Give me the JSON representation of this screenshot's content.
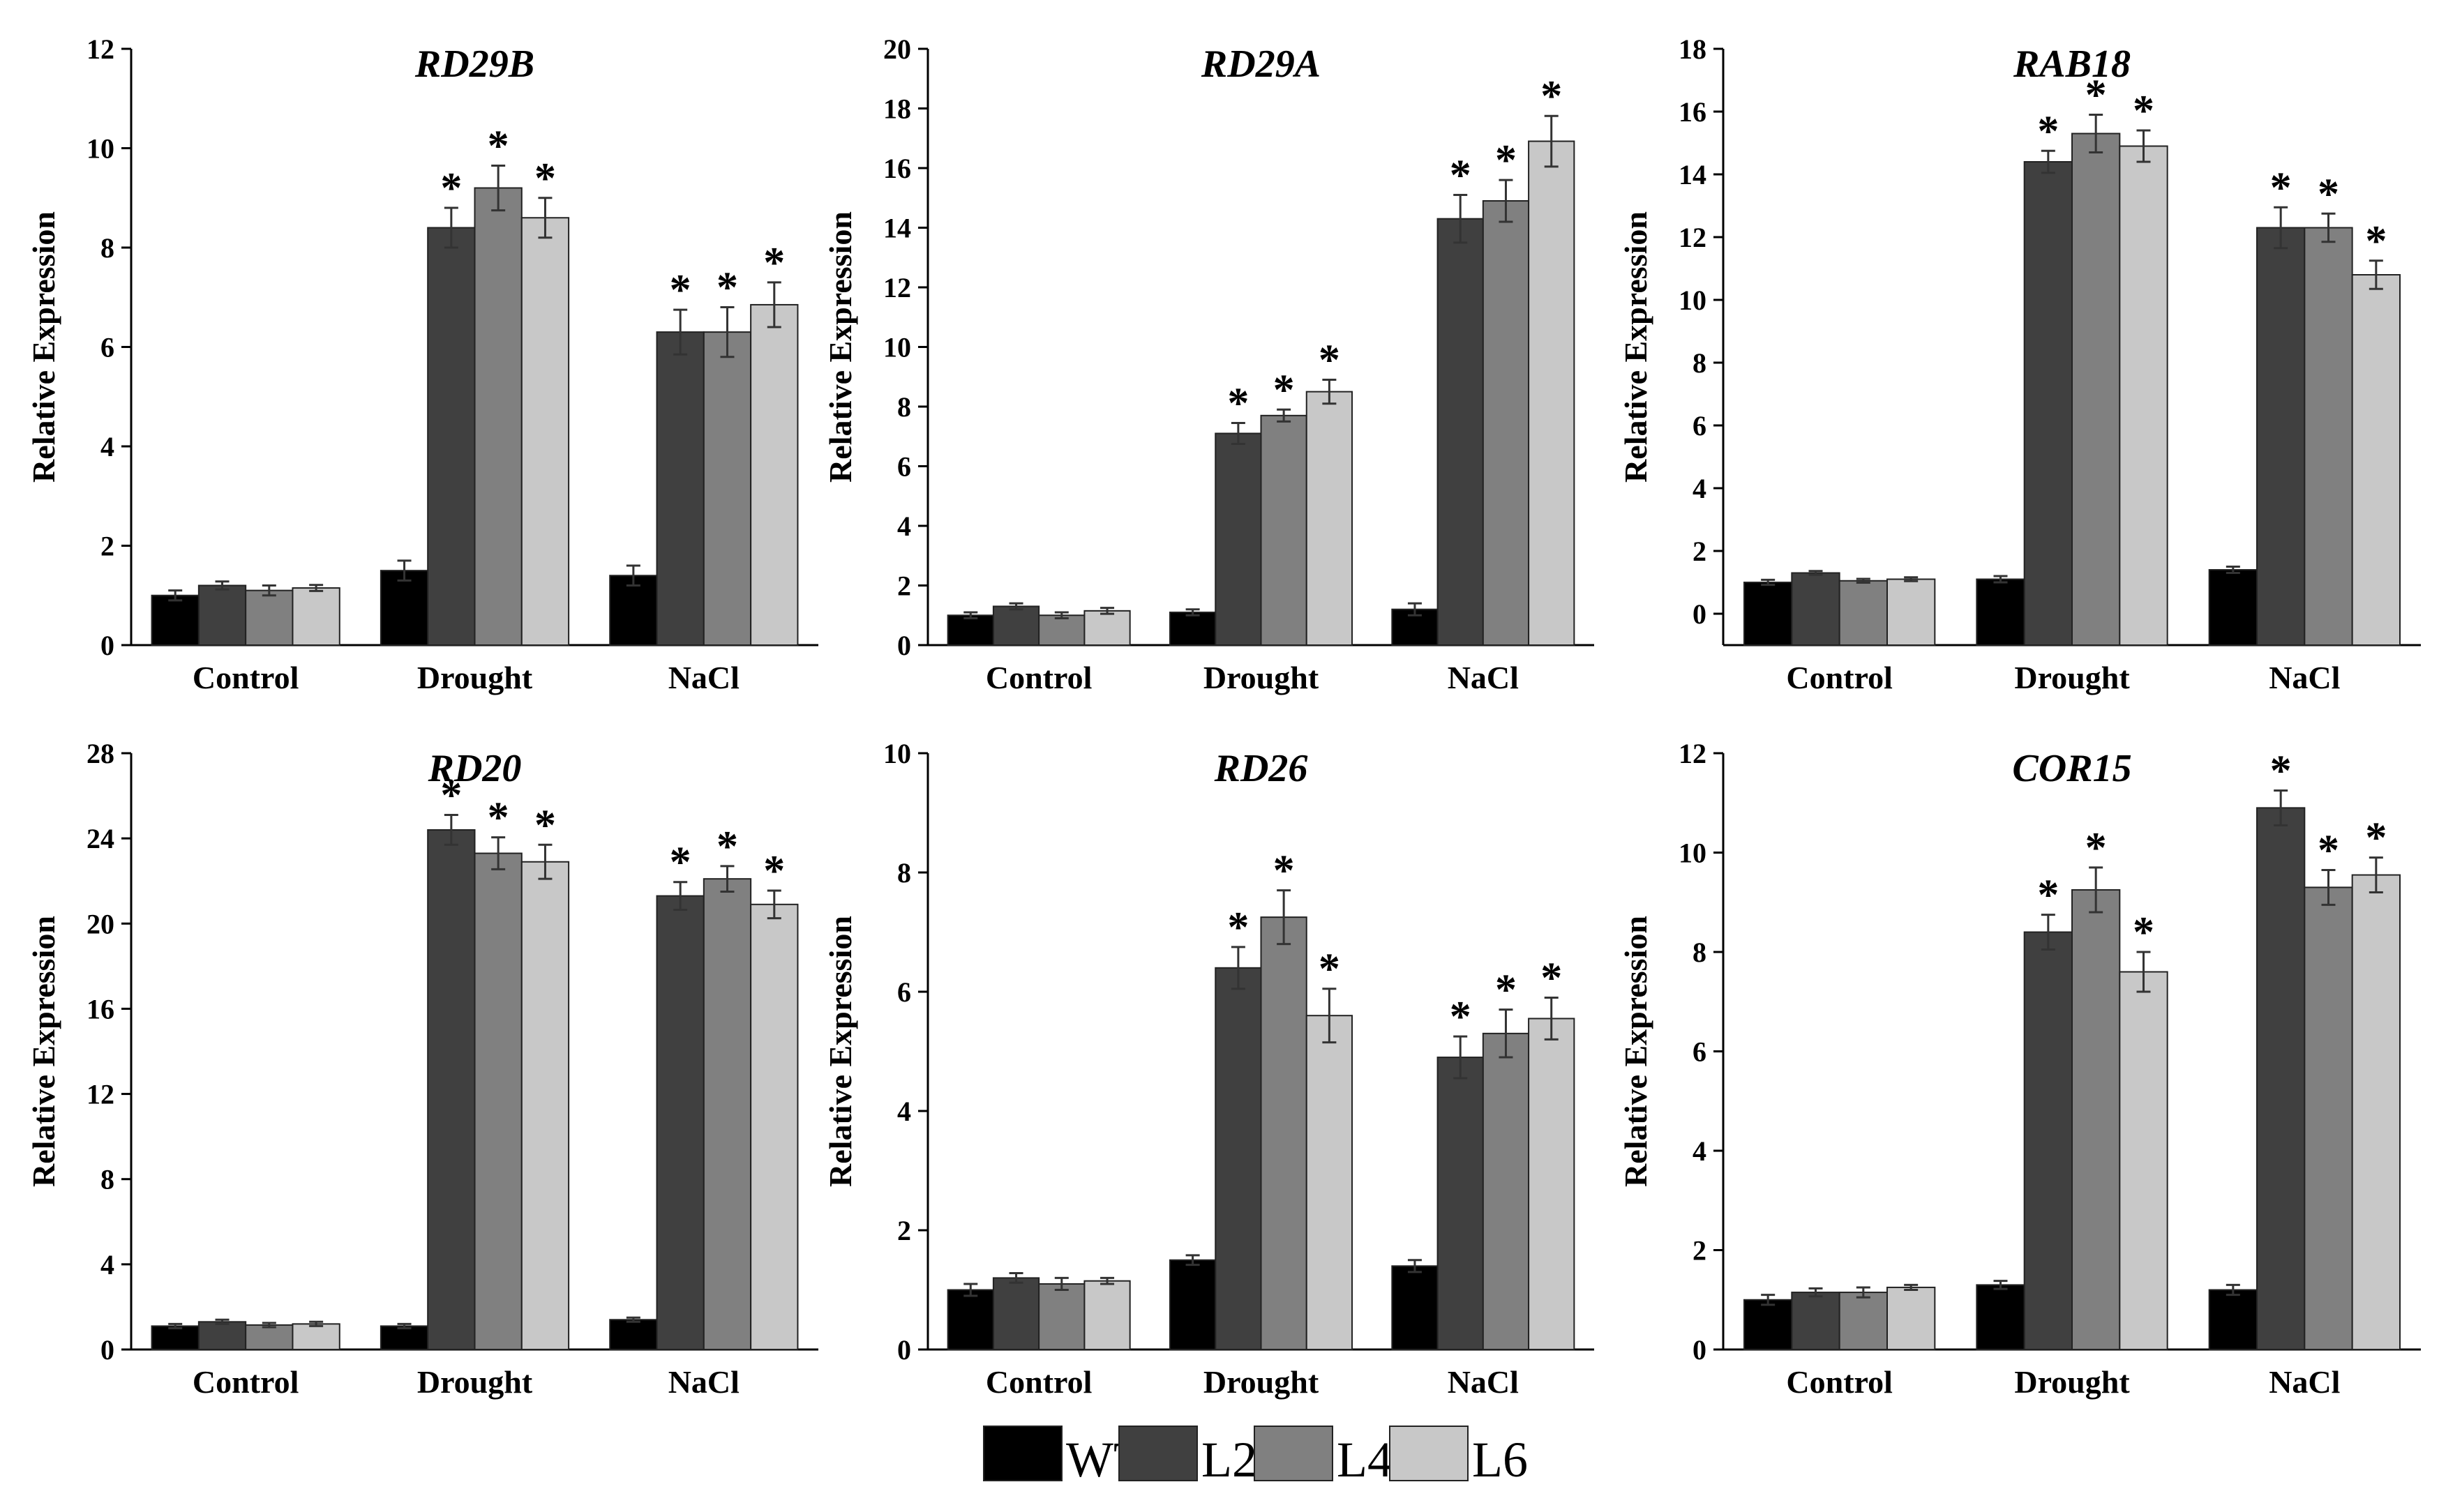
{
  "figure": {
    "legend": {
      "entries": [
        {
          "name": "WT",
          "color": "#000000"
        },
        {
          "name": "L2",
          "color": "#404040"
        },
        {
          "name": "L4",
          "color": "#808080"
        },
        {
          "name": "L6",
          "color": "#c8c8c8"
        }
      ]
    }
  },
  "chart_data": [
    {
      "type": "bar",
      "title": "RD29B",
      "ylabel": "Relative Expression",
      "xlabel": "",
      "categories": [
        "Control",
        "Drought",
        "NaCl"
      ],
      "ylim": [
        0,
        12
      ],
      "yticks": [
        0,
        2,
        4,
        6,
        8,
        10,
        12
      ],
      "series": [
        {
          "name": "WT",
          "values": [
            1.0,
            1.5,
            1.4
          ],
          "errors": [
            0.1,
            0.2,
            0.2
          ],
          "significant": [
            false,
            false,
            false
          ]
        },
        {
          "name": "L2",
          "values": [
            1.2,
            8.4,
            6.3
          ],
          "errors": [
            0.08,
            0.4,
            0.45
          ],
          "significant": [
            false,
            true,
            true
          ]
        },
        {
          "name": "L4",
          "values": [
            1.1,
            9.2,
            6.3
          ],
          "errors": [
            0.1,
            0.45,
            0.5
          ],
          "significant": [
            false,
            true,
            true
          ]
        },
        {
          "name": "L6",
          "values": [
            1.15,
            8.6,
            6.85
          ],
          "errors": [
            0.06,
            0.4,
            0.45
          ],
          "significant": [
            false,
            true,
            true
          ]
        }
      ]
    },
    {
      "type": "bar",
      "title": "RD29A",
      "ylabel": "Relative Expression",
      "xlabel": "",
      "categories": [
        "Control",
        "Drought",
        "NaCl"
      ],
      "ylim": [
        0,
        20
      ],
      "yticks": [
        0,
        2,
        4,
        6,
        8,
        10,
        12,
        14,
        16,
        18,
        20
      ],
      "series": [
        {
          "name": "WT",
          "values": [
            1.0,
            1.1,
            1.2
          ],
          "errors": [
            0.1,
            0.1,
            0.2
          ],
          "significant": [
            false,
            false,
            false
          ]
        },
        {
          "name": "L2",
          "values": [
            1.3,
            7.1,
            14.3
          ],
          "errors": [
            0.1,
            0.35,
            0.8
          ],
          "significant": [
            false,
            true,
            true
          ]
        },
        {
          "name": "L4",
          "values": [
            1.0,
            7.7,
            14.9
          ],
          "errors": [
            0.1,
            0.2,
            0.7
          ],
          "significant": [
            false,
            true,
            true
          ]
        },
        {
          "name": "L6",
          "values": [
            1.15,
            8.5,
            16.9
          ],
          "errors": [
            0.1,
            0.4,
            0.85
          ],
          "significant": [
            false,
            true,
            true
          ]
        }
      ]
    },
    {
      "type": "bar",
      "title": "RAB18",
      "ylabel": "Relative Expression",
      "xlabel": "",
      "categories": [
        "Control",
        "Drought",
        "NaCl"
      ],
      "ylim": [
        -1,
        18
      ],
      "yticks": [
        0,
        2,
        4,
        6,
        8,
        10,
        12,
        14,
        16,
        18
      ],
      "series": [
        {
          "name": "WT",
          "values": [
            1.0,
            1.1,
            1.4
          ],
          "errors": [
            0.08,
            0.1,
            0.1
          ],
          "significant": [
            false,
            false,
            false
          ]
        },
        {
          "name": "L2",
          "values": [
            1.3,
            14.4,
            12.3
          ],
          "errors": [
            0.06,
            0.35,
            0.65
          ],
          "significant": [
            false,
            true,
            true
          ]
        },
        {
          "name": "L4",
          "values": [
            1.05,
            15.3,
            12.3
          ],
          "errors": [
            0.06,
            0.6,
            0.45
          ],
          "significant": [
            false,
            true,
            true
          ]
        },
        {
          "name": "L6",
          "values": [
            1.1,
            14.9,
            10.8
          ],
          "errors": [
            0.06,
            0.5,
            0.45
          ],
          "significant": [
            false,
            true,
            true
          ]
        }
      ]
    },
    {
      "type": "bar",
      "title": "RD20",
      "ylabel": "Relative Expression",
      "xlabel": "",
      "categories": [
        "Control",
        "Drought",
        "NaCl"
      ],
      "ylim": [
        0,
        28
      ],
      "yticks": [
        0,
        4,
        8,
        12,
        16,
        20,
        24,
        28
      ],
      "series": [
        {
          "name": "WT",
          "values": [
            1.1,
            1.1,
            1.4
          ],
          "errors": [
            0.1,
            0.1,
            0.1
          ],
          "significant": [
            false,
            false,
            false
          ]
        },
        {
          "name": "L2",
          "values": [
            1.3,
            24.4,
            21.3
          ],
          "errors": [
            0.1,
            0.7,
            0.65
          ],
          "significant": [
            false,
            true,
            true
          ]
        },
        {
          "name": "L4",
          "values": [
            1.15,
            23.3,
            22.1
          ],
          "errors": [
            0.1,
            0.75,
            0.6
          ],
          "significant": [
            false,
            true,
            true
          ]
        },
        {
          "name": "L6",
          "values": [
            1.2,
            22.9,
            20.9
          ],
          "errors": [
            0.1,
            0.8,
            0.65
          ],
          "significant": [
            false,
            true,
            true
          ]
        }
      ]
    },
    {
      "type": "bar",
      "title": "RD26",
      "ylabel": "Relative Expression",
      "xlabel": "",
      "categories": [
        "Control",
        "Drought",
        "NaCl"
      ],
      "ylim": [
        0,
        10
      ],
      "yticks": [
        0,
        2,
        4,
        6,
        8,
        10
      ],
      "series": [
        {
          "name": "WT",
          "values": [
            1.0,
            1.5,
            1.4
          ],
          "errors": [
            0.1,
            0.08,
            0.1
          ],
          "significant": [
            false,
            false,
            false
          ]
        },
        {
          "name": "L2",
          "values": [
            1.2,
            6.4,
            4.9
          ],
          "errors": [
            0.08,
            0.35,
            0.35
          ],
          "significant": [
            false,
            true,
            true
          ]
        },
        {
          "name": "L4",
          "values": [
            1.1,
            7.25,
            5.3
          ],
          "errors": [
            0.1,
            0.45,
            0.4
          ],
          "significant": [
            false,
            true,
            true
          ]
        },
        {
          "name": "L6",
          "values": [
            1.15,
            5.6,
            5.55
          ],
          "errors": [
            0.05,
            0.45,
            0.35
          ],
          "significant": [
            false,
            true,
            true
          ]
        }
      ]
    },
    {
      "type": "bar",
      "title": "COR15",
      "ylabel": "Relative Expression",
      "xlabel": "",
      "categories": [
        "Control",
        "Drought",
        "NaCl"
      ],
      "ylim": [
        0,
        12
      ],
      "yticks": [
        0,
        2,
        4,
        6,
        8,
        10,
        12
      ],
      "series": [
        {
          "name": "WT",
          "values": [
            1.0,
            1.3,
            1.2
          ],
          "errors": [
            0.1,
            0.08,
            0.1
          ],
          "significant": [
            false,
            false,
            false
          ]
        },
        {
          "name": "L2",
          "values": [
            1.15,
            8.4,
            10.9
          ],
          "errors": [
            0.08,
            0.35,
            0.35
          ],
          "significant": [
            false,
            true,
            true
          ]
        },
        {
          "name": "L4",
          "values": [
            1.15,
            9.25,
            9.3
          ],
          "errors": [
            0.1,
            0.45,
            0.35
          ],
          "significant": [
            false,
            true,
            true
          ]
        },
        {
          "name": "L6",
          "values": [
            1.25,
            7.6,
            9.55
          ],
          "errors": [
            0.05,
            0.4,
            0.35
          ],
          "significant": [
            false,
            true,
            true
          ]
        }
      ]
    }
  ]
}
